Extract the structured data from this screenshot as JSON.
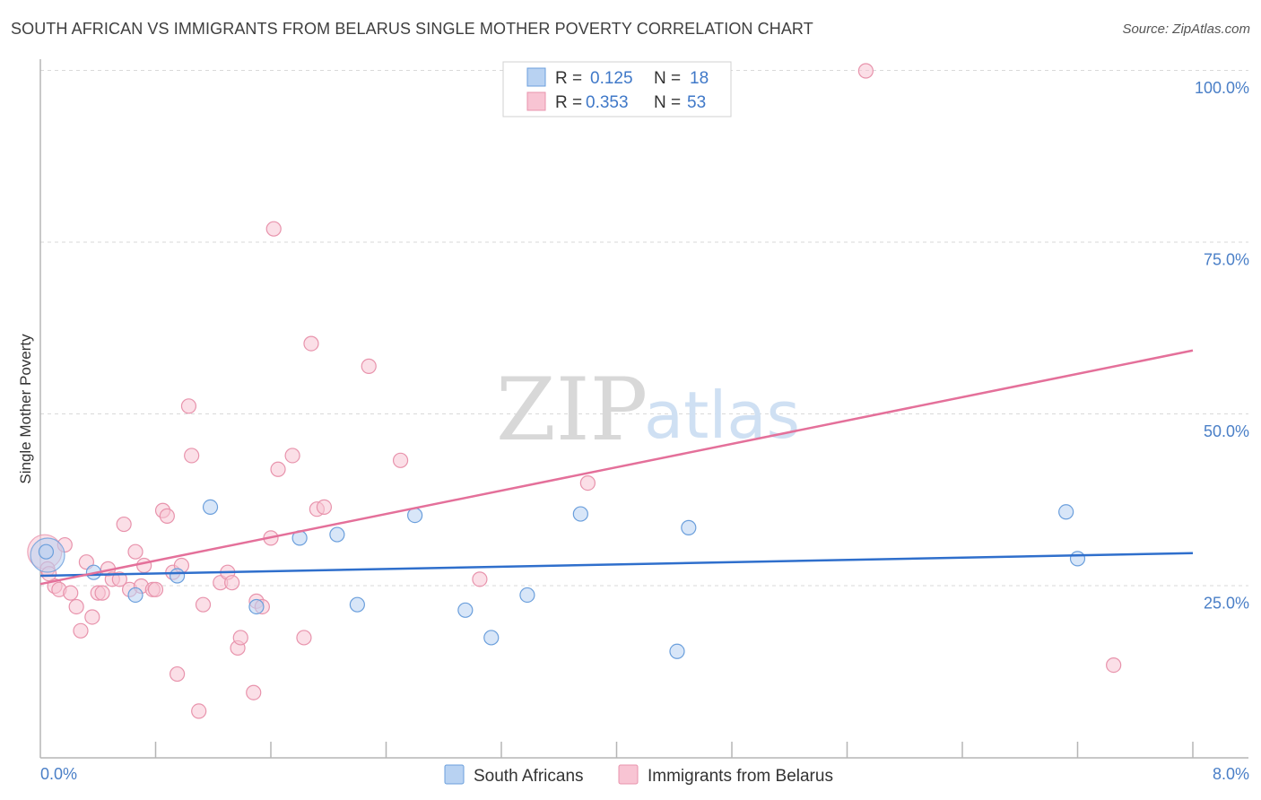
{
  "header": {
    "title": "SOUTH AFRICAN VS IMMIGRANTS FROM BELARUS SINGLE MOTHER POVERTY CORRELATION CHART",
    "source": "Source: ZipAtlas.com"
  },
  "watermark": {
    "zip": "ZIP",
    "atlas": "atlas"
  },
  "colors": {
    "blue_fill": "#b8d2f2",
    "blue_stroke": "#6b9fdc",
    "blue_line": "#2f6fcc",
    "pink_fill": "#f8c4d3",
    "pink_stroke": "#e893ac",
    "pink_line": "#e4709a",
    "grid": "#d9d9d9",
    "tick_text": "#4a7fc7"
  },
  "legend": {
    "rows": [
      {
        "r_label": "R =",
        "r_value": "0.125",
        "n_label": "N =",
        "n_value": "18"
      },
      {
        "r_label": "R =",
        "r_value": "0.353",
        "n_label": "N =",
        "n_value": "53"
      }
    ]
  },
  "bottom_legend": {
    "series1": "South Africans",
    "series2": "Immigrants from Belarus"
  },
  "chart_data": {
    "type": "scatter",
    "title": "SOUTH AFRICAN VS IMMIGRANTS FROM BELARUS SINGLE MOTHER POVERTY CORRELATION CHART",
    "xlabel": "",
    "ylabel": "Single Mother Poverty",
    "xlim": [
      0,
      8
    ],
    "ylim": [
      0,
      102
    ],
    "x_tick_labels": {
      "left": "0.0%",
      "right": "8.0%"
    },
    "y_ticks": [
      {
        "value": 25,
        "label": "25.0%"
      },
      {
        "value": 50,
        "label": "50.0%"
      },
      {
        "value": 75,
        "label": "75.0%"
      },
      {
        "value": 100,
        "label": "100.0%"
      }
    ],
    "x_minor_ticks": [
      0.8,
      1.6,
      2.4,
      3.2,
      4.0,
      4.8,
      5.6,
      6.4,
      7.2,
      8.0
    ],
    "series": [
      {
        "name": "South Africans",
        "color_key": "blue",
        "trend": {
          "x0": 0,
          "y0": 26.5,
          "x1": 8,
          "y1": 29.8
        },
        "big_point": {
          "x": 0.05,
          "y": 29.5
        },
        "points": [
          {
            "x": 0.37,
            "y": 27
          },
          {
            "x": 0.66,
            "y": 23.7
          },
          {
            "x": 0.95,
            "y": 26.5
          },
          {
            "x": 1.18,
            "y": 36.5
          },
          {
            "x": 1.5,
            "y": 22
          },
          {
            "x": 1.8,
            "y": 32
          },
          {
            "x": 2.06,
            "y": 32.5
          },
          {
            "x": 2.2,
            "y": 22.3
          },
          {
            "x": 2.6,
            "y": 35.3
          },
          {
            "x": 2.95,
            "y": 21.5
          },
          {
            "x": 3.13,
            "y": 17.5
          },
          {
            "x": 3.38,
            "y": 23.7
          },
          {
            "x": 3.75,
            "y": 35.5
          },
          {
            "x": 4.42,
            "y": 15.5
          },
          {
            "x": 4.5,
            "y": 33.5
          },
          {
            "x": 7.12,
            "y": 35.8
          },
          {
            "x": 7.2,
            "y": 29
          },
          {
            "x": 0.04,
            "y": 30
          }
        ]
      },
      {
        "name": "Immigrants from Belarus",
        "color_key": "pink",
        "trend": {
          "x0": 0,
          "y0": 25.3,
          "x1": 8,
          "y1": 59.3
        },
        "big_point": {
          "x": 0.03,
          "y": 30
        },
        "points": [
          {
            "x": 0.05,
            "y": 27.5
          },
          {
            "x": 0.1,
            "y": 25
          },
          {
            "x": 0.13,
            "y": 24.5
          },
          {
            "x": 0.17,
            "y": 31
          },
          {
            "x": 0.21,
            "y": 24
          },
          {
            "x": 0.25,
            "y": 22
          },
          {
            "x": 0.28,
            "y": 18.5
          },
          {
            "x": 0.32,
            "y": 28.5
          },
          {
            "x": 0.36,
            "y": 20.5
          },
          {
            "x": 0.4,
            "y": 24
          },
          {
            "x": 0.43,
            "y": 24
          },
          {
            "x": 0.47,
            "y": 27.5
          },
          {
            "x": 0.5,
            "y": 26
          },
          {
            "x": 0.55,
            "y": 26
          },
          {
            "x": 0.58,
            "y": 34
          },
          {
            "x": 0.62,
            "y": 24.5
          },
          {
            "x": 0.66,
            "y": 30
          },
          {
            "x": 0.7,
            "y": 25
          },
          {
            "x": 0.72,
            "y": 28
          },
          {
            "x": 0.78,
            "y": 24.5
          },
          {
            "x": 0.8,
            "y": 24.5
          },
          {
            "x": 0.85,
            "y": 36
          },
          {
            "x": 0.88,
            "y": 35.2
          },
          {
            "x": 0.92,
            "y": 27
          },
          {
            "x": 0.95,
            "y": 12.2
          },
          {
            "x": 0.98,
            "y": 28
          },
          {
            "x": 1.03,
            "y": 51.2
          },
          {
            "x": 1.05,
            "y": 44
          },
          {
            "x": 1.1,
            "y": 6.8
          },
          {
            "x": 1.13,
            "y": 22.3
          },
          {
            "x": 1.25,
            "y": 25.5
          },
          {
            "x": 1.3,
            "y": 27
          },
          {
            "x": 1.33,
            "y": 25.5
          },
          {
            "x": 1.37,
            "y": 16
          },
          {
            "x": 1.39,
            "y": 17.5
          },
          {
            "x": 1.48,
            "y": 9.5
          },
          {
            "x": 1.5,
            "y": 22.8
          },
          {
            "x": 1.54,
            "y": 22
          },
          {
            "x": 1.6,
            "y": 32
          },
          {
            "x": 1.62,
            "y": 77
          },
          {
            "x": 1.65,
            "y": 42
          },
          {
            "x": 1.75,
            "y": 44
          },
          {
            "x": 1.83,
            "y": 17.5
          },
          {
            "x": 1.88,
            "y": 60.3
          },
          {
            "x": 1.92,
            "y": 36.2
          },
          {
            "x": 1.97,
            "y": 36.5
          },
          {
            "x": 2.28,
            "y": 57
          },
          {
            "x": 2.5,
            "y": 43.3
          },
          {
            "x": 3.05,
            "y": 26
          },
          {
            "x": 3.8,
            "y": 40
          },
          {
            "x": 5.73,
            "y": 100
          },
          {
            "x": 7.45,
            "y": 13.5
          },
          {
            "x": 0.06,
            "y": 26.8
          }
        ]
      }
    ]
  }
}
